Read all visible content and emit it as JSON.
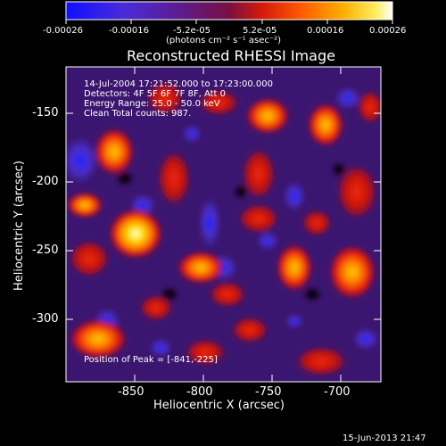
{
  "colorbar": {
    "tick_labels": [
      "-0.00026",
      "-0.00016",
      "-5.2e-05",
      "5.2e-05",
      "0.00016",
      "0.00026"
    ],
    "units_label": "(photons cm⁻² s⁻¹ asec⁻²)",
    "min": -0.00026,
    "max": 0.00026,
    "colormap": "blue-purple-red-yellow-white"
  },
  "plot": {
    "title": "Reconstructed RHESSI Image",
    "overlay_lines": [
      "14-Jul-2004 17:21:52.000 to 17:23:00.000",
      "Detectors: 4F 5F 6F 7F 8F, Att 0",
      "Energy Range: 25.0 - 50.0 keV",
      "Clean      Total counts: 987."
    ],
    "peak_text": "Position of Peak = [-841,-225]",
    "x_axis": {
      "label": "Heliocentric X (arcsec)",
      "ticks": [
        "-850",
        "-800",
        "-750",
        "-700"
      ],
      "range": [
        -875,
        -690
      ]
    },
    "y_axis": {
      "label": "Heliocentric Y (arcsec)",
      "ticks": [
        "-150",
        "-200",
        "-250",
        "-300"
      ],
      "range": [
        -315,
        -130
      ]
    },
    "image_colors": {
      "background": "#3b1670",
      "blue": "#2a2aff",
      "red": "#e01010",
      "orange": "#ff8a00",
      "yellow": "#ffe600",
      "white": "#ffffff"
    }
  },
  "footer": {
    "timestamp": "15-Jun-2013 21:47"
  }
}
